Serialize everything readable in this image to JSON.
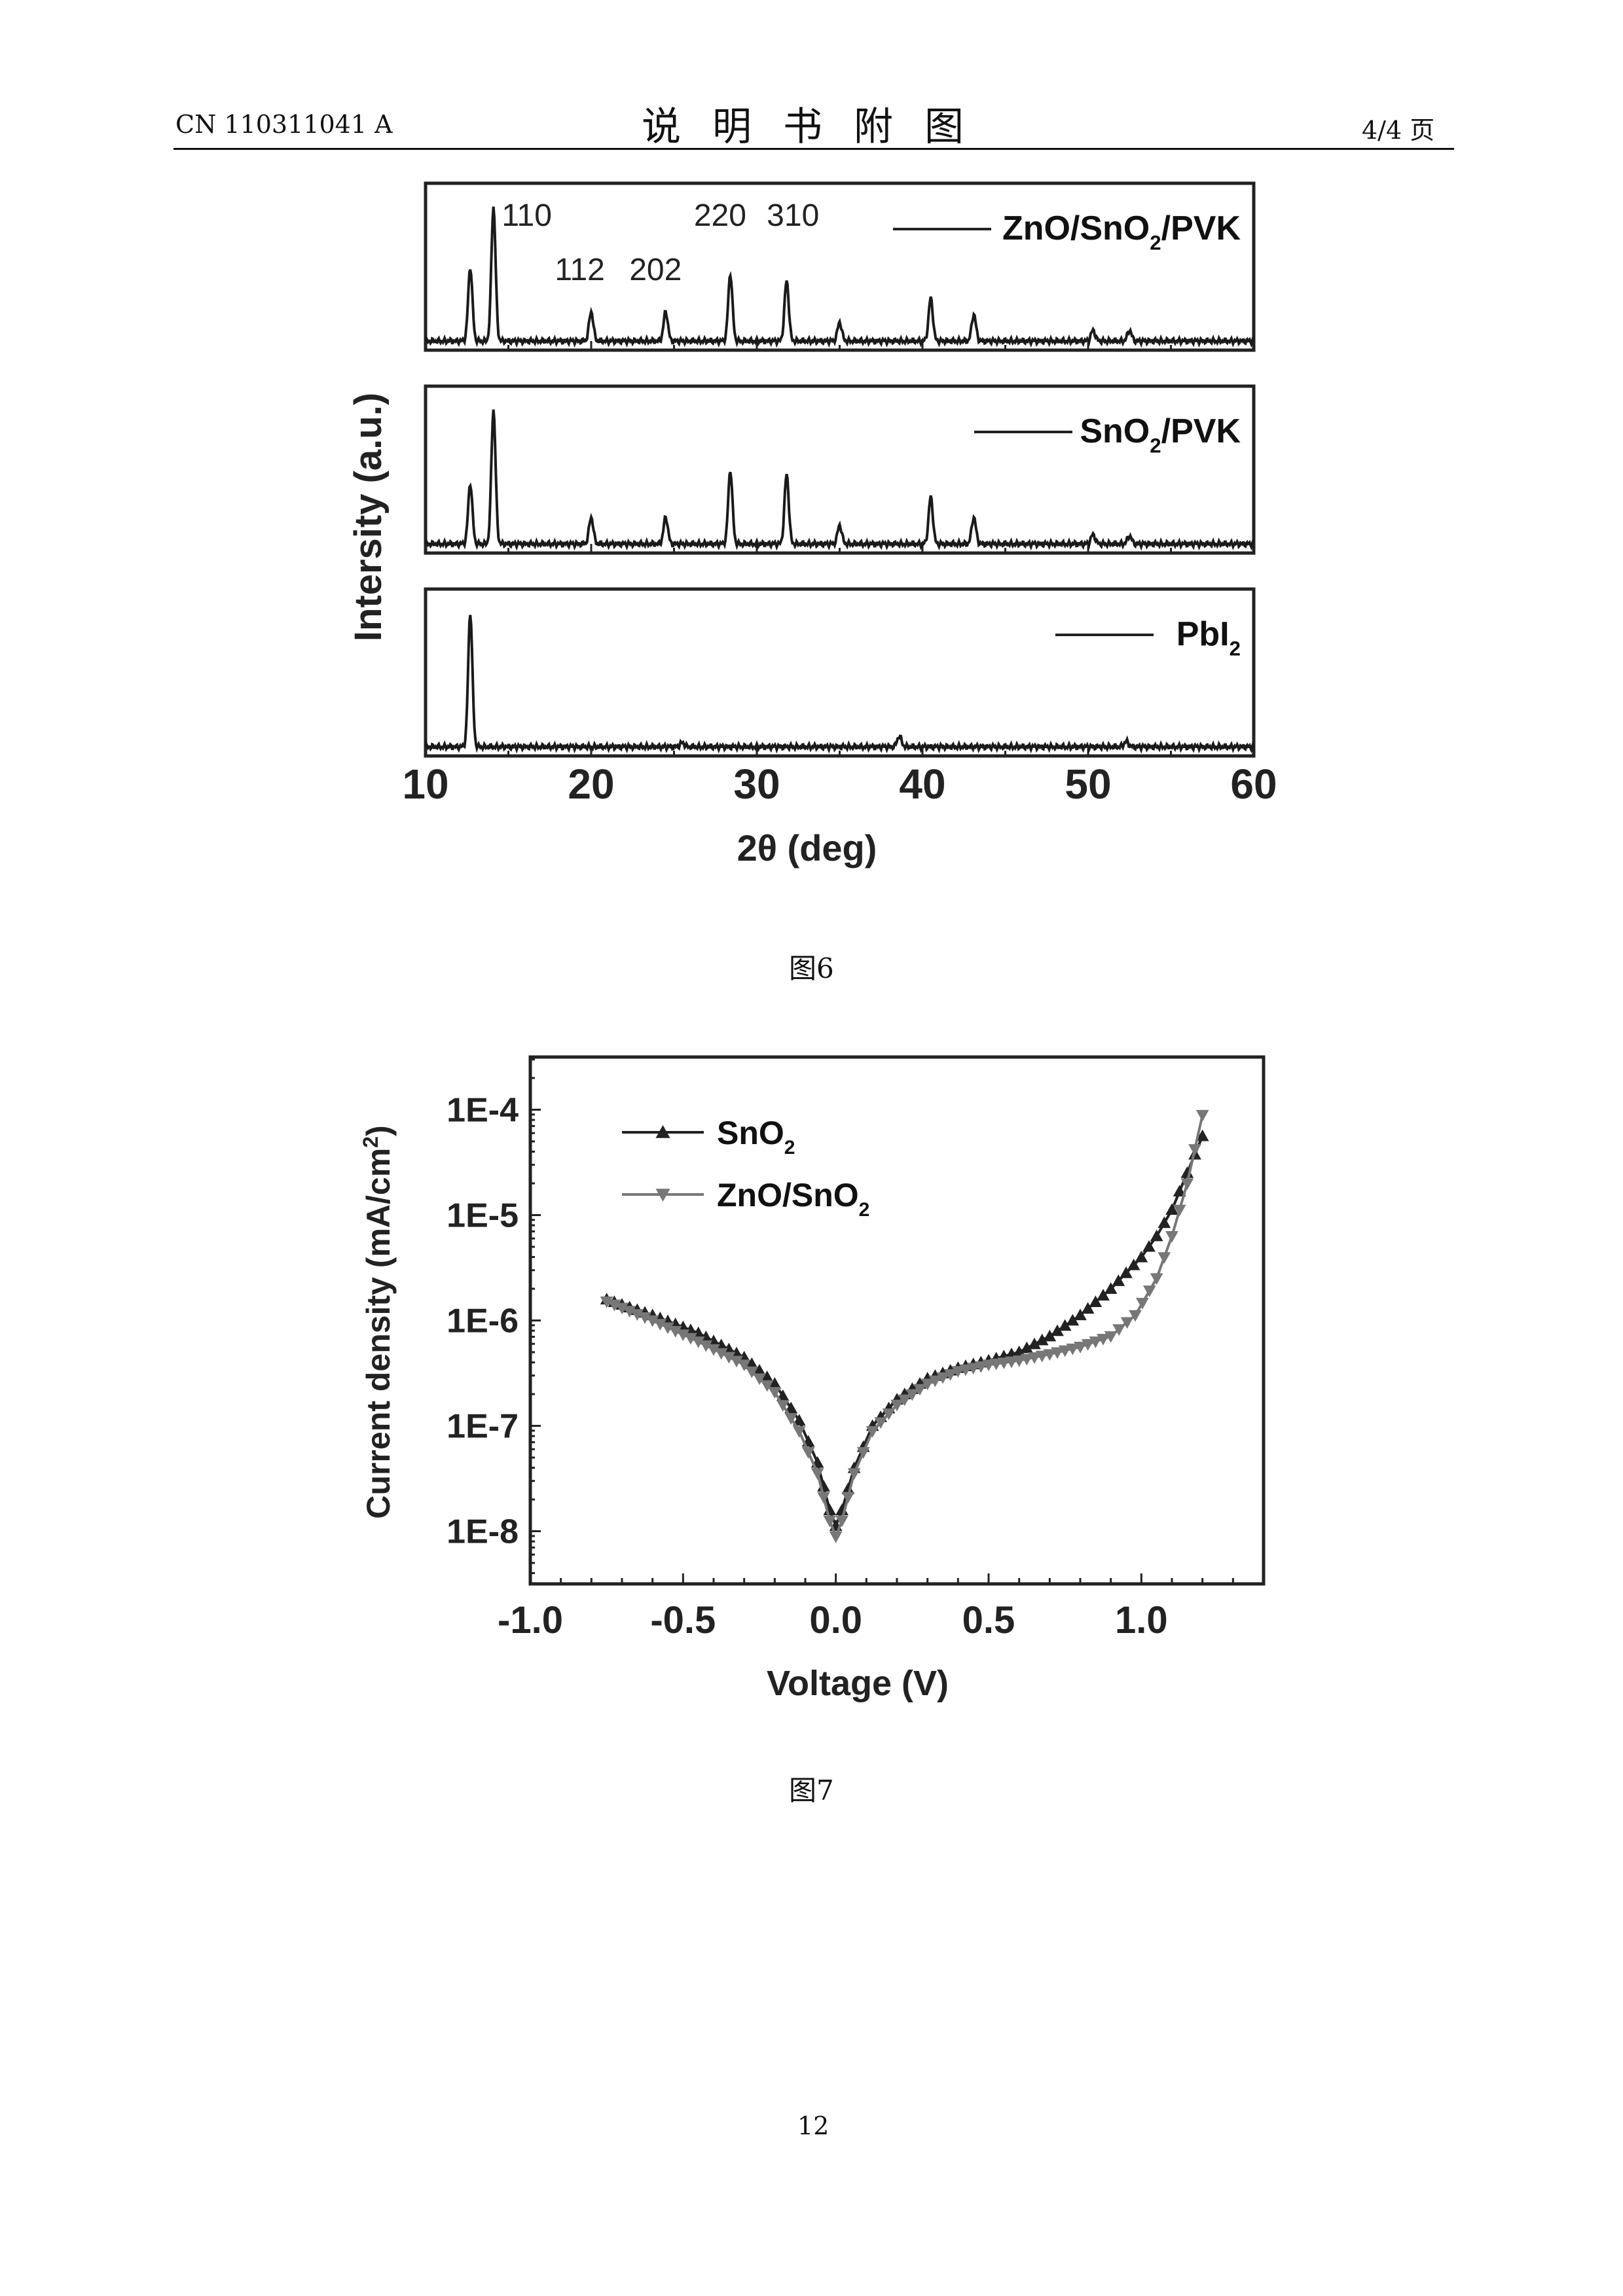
{
  "header": {
    "patent_number": "CN 110311041 A",
    "section_title": "说明书附图",
    "page_indicator": "4/4 页"
  },
  "figures": {
    "fig6_caption": "图6",
    "fig7_caption": "图7"
  },
  "footer": {
    "page_number": "12"
  },
  "chart_data": [
    {
      "type": "line",
      "id": "fig6",
      "xlabel": "2θ (deg)",
      "ylabel": "Intersity (a.u.)",
      "xlim": [
        10,
        60
      ],
      "xticks": [
        "10",
        "20",
        "30",
        "40",
        "50",
        "60"
      ],
      "panels": [
        {
          "label_main": "ZnO/SnO",
          "label_sub": "2",
          "label_tail": "/PVK",
          "peaks": [
            {
              "x": 12.7,
              "h": 0.55
            },
            {
              "x": 14.1,
              "h": 1.0
            },
            {
              "x": 20.0,
              "h": 0.22
            },
            {
              "x": 24.5,
              "h": 0.22
            },
            {
              "x": 28.4,
              "h": 0.5
            },
            {
              "x": 31.8,
              "h": 0.45
            },
            {
              "x": 35.0,
              "h": 0.14
            },
            {
              "x": 40.5,
              "h": 0.32
            },
            {
              "x": 43.1,
              "h": 0.2
            },
            {
              "x": 50.3,
              "h": 0.08
            },
            {
              "x": 52.5,
              "h": 0.08
            }
          ],
          "miller_indices": [
            {
              "x": 14.6,
              "text": "110",
              "row": 0
            },
            {
              "x": 17.8,
              "text": "112",
              "row": 1
            },
            {
              "x": 22.3,
              "text": "202",
              "row": 1
            },
            {
              "x": 26.2,
              "text": "220",
              "row": 0
            },
            {
              "x": 30.6,
              "text": "310",
              "row": 0
            }
          ]
        },
        {
          "label_main": "SnO",
          "label_sub": "2",
          "label_tail": "/PVK",
          "peaks": [
            {
              "x": 12.7,
              "h": 0.45
            },
            {
              "x": 14.1,
              "h": 1.0
            },
            {
              "x": 20.0,
              "h": 0.2
            },
            {
              "x": 24.5,
              "h": 0.2
            },
            {
              "x": 28.4,
              "h": 0.55
            },
            {
              "x": 31.8,
              "h": 0.52
            },
            {
              "x": 35.0,
              "h": 0.14
            },
            {
              "x": 40.5,
              "h": 0.35
            },
            {
              "x": 43.1,
              "h": 0.2
            },
            {
              "x": 50.3,
              "h": 0.07
            },
            {
              "x": 52.5,
              "h": 0.06
            }
          ]
        },
        {
          "label_main": "PbI",
          "label_sub": "2",
          "label_tail": "",
          "peaks": [
            {
              "x": 12.7,
              "h": 1.0
            },
            {
              "x": 25.5,
              "h": 0.03
            },
            {
              "x": 38.6,
              "h": 0.08
            },
            {
              "x": 52.3,
              "h": 0.04
            }
          ]
        }
      ]
    },
    {
      "type": "line",
      "id": "fig7",
      "xlabel": "Voltage (V)",
      "ylabel": "Current density (mA/cm",
      "ylabel_sup": "2",
      "ylabel_end": ")",
      "xlim": [
        -1.0,
        1.4
      ],
      "ylim_log10": [
        -8.5,
        -3.5
      ],
      "xticks": [
        {
          "v": -1.0,
          "t": "-1.0"
        },
        {
          "v": -0.5,
          "t": "-0.5"
        },
        {
          "v": 0.0,
          "t": "0.0"
        },
        {
          "v": 0.5,
          "t": "0.5"
        },
        {
          "v": 1.0,
          "t": "1.0"
        }
      ],
      "yticks": [
        {
          "v": -4,
          "t": "1E-4"
        },
        {
          "v": -5,
          "t": "1E-5"
        },
        {
          "v": -6,
          "t": "1E-6"
        },
        {
          "v": -7,
          "t": "1E-7"
        },
        {
          "v": -8,
          "t": "1E-8"
        }
      ],
      "series": [
        {
          "name_main": "SnO",
          "name_sub": "2",
          "marker": "triangle-up",
          "points": [
            [
              -0.75,
              -5.8
            ],
            [
              -0.6,
              -5.95
            ],
            [
              -0.45,
              -6.12
            ],
            [
              -0.3,
              -6.35
            ],
            [
              -0.2,
              -6.6
            ],
            [
              -0.12,
              -6.95
            ],
            [
              -0.06,
              -7.35
            ],
            [
              -0.02,
              -7.8
            ],
            [
              0.0,
              -7.95
            ],
            [
              0.02,
              -7.8
            ],
            [
              0.06,
              -7.4
            ],
            [
              0.12,
              -7.0
            ],
            [
              0.2,
              -6.75
            ],
            [
              0.3,
              -6.55
            ],
            [
              0.4,
              -6.45
            ],
            [
              0.5,
              -6.38
            ],
            [
              0.6,
              -6.3
            ],
            [
              0.7,
              -6.15
            ],
            [
              0.8,
              -5.95
            ],
            [
              0.9,
              -5.7
            ],
            [
              1.0,
              -5.4
            ],
            [
              1.05,
              -5.2
            ],
            [
              1.1,
              -4.95
            ],
            [
              1.15,
              -4.6
            ],
            [
              1.2,
              -4.25
            ]
          ]
        },
        {
          "name_main": "ZnO/SnO",
          "name_sub": "2",
          "marker": "triangle-down",
          "points": [
            [
              -0.75,
              -5.82
            ],
            [
              -0.6,
              -6.0
            ],
            [
              -0.45,
              -6.2
            ],
            [
              -0.3,
              -6.42
            ],
            [
              -0.2,
              -6.68
            ],
            [
              -0.12,
              -7.05
            ],
            [
              -0.06,
              -7.45
            ],
            [
              -0.02,
              -7.9
            ],
            [
              0.0,
              -8.05
            ],
            [
              0.02,
              -7.9
            ],
            [
              0.06,
              -7.45
            ],
            [
              0.12,
              -7.05
            ],
            [
              0.2,
              -6.8
            ],
            [
              0.3,
              -6.6
            ],
            [
              0.4,
              -6.48
            ],
            [
              0.5,
              -6.42
            ],
            [
              0.6,
              -6.38
            ],
            [
              0.7,
              -6.32
            ],
            [
              0.8,
              -6.25
            ],
            [
              0.9,
              -6.15
            ],
            [
              0.98,
              -5.95
            ],
            [
              1.05,
              -5.6
            ],
            [
              1.1,
              -5.2
            ],
            [
              1.15,
              -4.7
            ],
            [
              1.2,
              -4.05
            ]
          ]
        }
      ]
    }
  ]
}
